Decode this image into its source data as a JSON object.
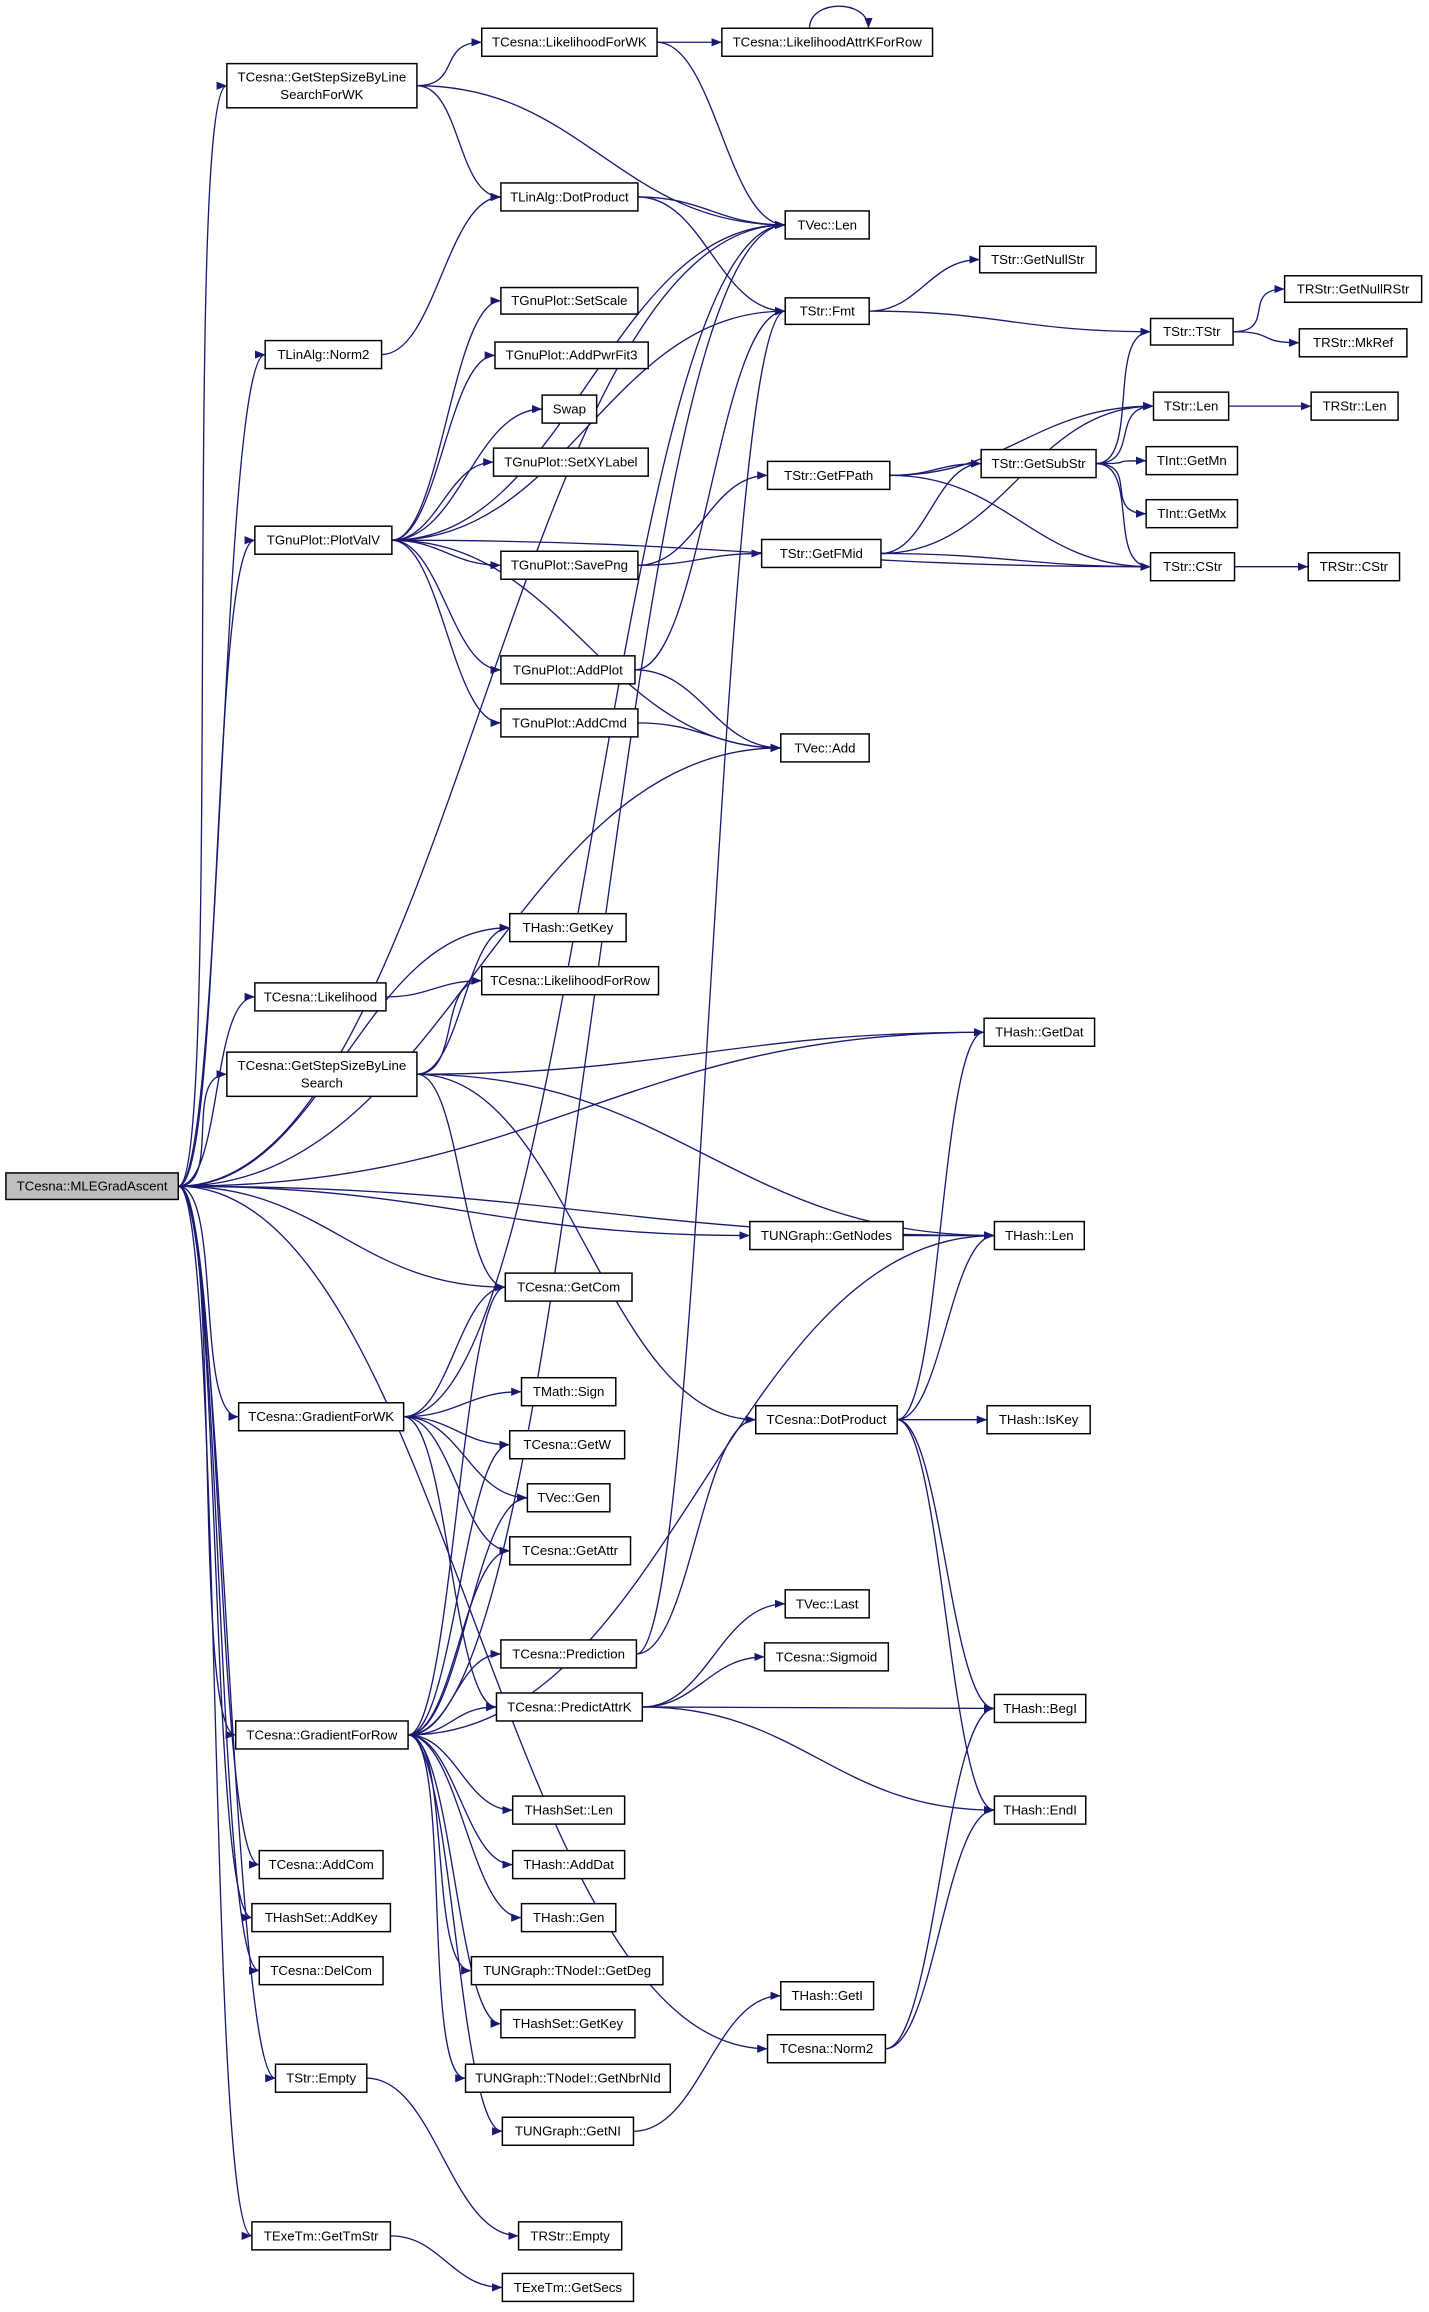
{
  "colors": {
    "edge": "#191970",
    "root_fill": "#bfbfbf",
    "node_fill": "#ffffff"
  },
  "root": "mle",
  "nodes": {
    "mle": {
      "lines": [
        "TCesna::MLEGradAscent"
      ]
    },
    "gsslfwk": {
      "lines": [
        "TCesna::GetStepSizeByLine",
        "SearchForWK"
      ]
    },
    "lfwk": {
      "lines": [
        "TCesna::LikelihoodForWK"
      ]
    },
    "lakfr": {
      "lines": [
        "TCesna::LikelihoodAttrKForRow"
      ]
    },
    "la_dot": {
      "lines": [
        "TLinAlg::DotProduct"
      ]
    },
    "vlen": {
      "lines": [
        "TVec::Len"
      ]
    },
    "getnullstr": {
      "lines": [
        "TStr::GetNullStr"
      ]
    },
    "fmt": {
      "lines": [
        "TStr::Fmt"
      ]
    },
    "getnullrstr": {
      "lines": [
        "TRStr::GetNullRStr"
      ]
    },
    "tstr": {
      "lines": [
        "TStr::TStr"
      ]
    },
    "mkref": {
      "lines": [
        "TRStr::MkRef"
      ]
    },
    "la_norm2": {
      "lines": [
        "TLinAlg::Norm2"
      ]
    },
    "setscale": {
      "lines": [
        "TGnuPlot::SetScale"
      ]
    },
    "addpwrfit3": {
      "lines": [
        "TGnuPlot::AddPwrFit3"
      ]
    },
    "swap": {
      "lines": [
        "Swap"
      ]
    },
    "setxylabel": {
      "lines": [
        "TGnuPlot::SetXYLabel"
      ]
    },
    "slen": {
      "lines": [
        "TStr::Len"
      ]
    },
    "rlen": {
      "lines": [
        "TRStr::Len"
      ]
    },
    "getfpath": {
      "lines": [
        "TStr::GetFPath"
      ]
    },
    "getsubstr": {
      "lines": [
        "TStr::GetSubStr"
      ]
    },
    "getmn": {
      "lines": [
        "TInt::GetMn"
      ]
    },
    "getmx": {
      "lines": [
        "TInt::GetMx"
      ]
    },
    "plotvalv": {
      "lines": [
        "TGnuPlot::PlotValV"
      ]
    },
    "savepng": {
      "lines": [
        "TGnuPlot::SavePng"
      ]
    },
    "getfmid": {
      "lines": [
        "TStr::GetFMid"
      ]
    },
    "cstr": {
      "lines": [
        "TStr::CStr"
      ]
    },
    "rcstr": {
      "lines": [
        "TRStr::CStr"
      ]
    },
    "addplot": {
      "lines": [
        "TGnuPlot::AddPlot"
      ]
    },
    "addcmd": {
      "lines": [
        "TGnuPlot::AddCmd"
      ]
    },
    "vadd": {
      "lines": [
        "TVec::Add"
      ]
    },
    "getkey": {
      "lines": [
        "THash::GetKey"
      ]
    },
    "likelihood": {
      "lines": [
        "TCesna::Likelihood"
      ]
    },
    "lfr": {
      "lines": [
        "TCesna::LikelihoodForRow"
      ]
    },
    "getdat": {
      "lines": [
        "THash::GetDat"
      ]
    },
    "gssls": {
      "lines": [
        "TCesna::GetStepSizeByLine",
        "Search"
      ]
    },
    "getnodes": {
      "lines": [
        "TUNGraph::GetNodes"
      ]
    },
    "hlen": {
      "lines": [
        "THash::Len"
      ]
    },
    "getcom": {
      "lines": [
        "TCesna::GetCom"
      ]
    },
    "sign": {
      "lines": [
        "TMath::Sign"
      ]
    },
    "gradwk": {
      "lines": [
        "TCesna::GradientForWK"
      ]
    },
    "c_dot": {
      "lines": [
        "TCesna::DotProduct"
      ]
    },
    "iskey": {
      "lines": [
        "THash::IsKey"
      ]
    },
    "getw": {
      "lines": [
        "TCesna::GetW"
      ]
    },
    "vgen": {
      "lines": [
        "TVec::Gen"
      ]
    },
    "getattr": {
      "lines": [
        "TCesna::GetAttr"
      ]
    },
    "vlast": {
      "lines": [
        "TVec::Last"
      ]
    },
    "prediction": {
      "lines": [
        "TCesna::Prediction"
      ]
    },
    "sigmoid": {
      "lines": [
        "TCesna::Sigmoid"
      ]
    },
    "predattrk": {
      "lines": [
        "TCesna::PredictAttrK"
      ]
    },
    "begi": {
      "lines": [
        "THash::BegI"
      ]
    },
    "gradrow": {
      "lines": [
        "TCesna::GradientForRow"
      ]
    },
    "endi": {
      "lines": [
        "THash::EndI"
      ]
    },
    "hslen": {
      "lines": [
        "THashSet::Len"
      ]
    },
    "addcom": {
      "lines": [
        "TCesna::AddCom"
      ]
    },
    "adddat": {
      "lines": [
        "THash::AddDat"
      ]
    },
    "hsaddkey": {
      "lines": [
        "THashSet::AddKey"
      ]
    },
    "hgen": {
      "lines": [
        "THash::Gen"
      ]
    },
    "delcom": {
      "lines": [
        "TCesna::DelCom"
      ]
    },
    "getdeg": {
      "lines": [
        "TUNGraph::TNodeI::GetDeg"
      ]
    },
    "hsgetkey": {
      "lines": [
        "THashSet::GetKey"
      ]
    },
    "geti": {
      "lines": [
        "THash::GetI"
      ]
    },
    "c_norm2": {
      "lines": [
        "TCesna::Norm2"
      ]
    },
    "sempty": {
      "lines": [
        "TStr::Empty"
      ]
    },
    "getnbrnid": {
      "lines": [
        "TUNGraph::TNodeI::GetNbrNId"
      ]
    },
    "getni": {
      "lines": [
        "TUNGraph::GetNI"
      ]
    },
    "rempty": {
      "lines": [
        "TRStr::Empty"
      ]
    },
    "gettmstr": {
      "lines": [
        "TExeTm::GetTmStr"
      ]
    },
    "getsecs": {
      "lines": [
        "TExeTm::GetSecs"
      ]
    }
  },
  "edges": [
    [
      "mle",
      "gsslfwk"
    ],
    [
      "mle",
      "vlen"
    ],
    [
      "mle",
      "la_norm2"
    ],
    [
      "mle",
      "plotvalv"
    ],
    [
      "mle",
      "vadd"
    ],
    [
      "mle",
      "getdat"
    ],
    [
      "mle",
      "getkey"
    ],
    [
      "mle",
      "likelihood"
    ],
    [
      "mle",
      "gssls"
    ],
    [
      "mle",
      "hlen"
    ],
    [
      "mle",
      "getnodes"
    ],
    [
      "mle",
      "getcom"
    ],
    [
      "mle",
      "gradwk"
    ],
    [
      "mle",
      "gradrow"
    ],
    [
      "mle",
      "addcom"
    ],
    [
      "mle",
      "hsaddkey"
    ],
    [
      "mle",
      "delcom"
    ],
    [
      "mle",
      "sempty"
    ],
    [
      "mle",
      "gettmstr"
    ],
    [
      "mle",
      "c_norm2"
    ],
    [
      "gsslfwk",
      "lfwk"
    ],
    [
      "gsslfwk",
      "vlen"
    ],
    [
      "gsslfwk",
      "la_dot"
    ],
    [
      "lfwk",
      "lakfr"
    ],
    [
      "lfwk",
      "vlen"
    ],
    [
      "lakfr",
      "lakfr"
    ],
    [
      "la_dot",
      "vlen"
    ],
    [
      "la_dot",
      "fmt"
    ],
    [
      "la_norm2",
      "la_dot"
    ],
    [
      "fmt",
      "getnullstr"
    ],
    [
      "fmt",
      "tstr"
    ],
    [
      "tstr",
      "getnullrstr"
    ],
    [
      "tstr",
      "mkref"
    ],
    [
      "plotvalv",
      "vlen"
    ],
    [
      "plotvalv",
      "setscale"
    ],
    [
      "plotvalv",
      "addpwrfit3"
    ],
    [
      "plotvalv",
      "swap"
    ],
    [
      "plotvalv",
      "setxylabel"
    ],
    [
      "plotvalv",
      "savepng"
    ],
    [
      "plotvalv",
      "addplot"
    ],
    [
      "plotvalv",
      "addcmd"
    ],
    [
      "plotvalv",
      "fmt"
    ],
    [
      "plotvalv",
      "cstr"
    ],
    [
      "plotvalv",
      "vadd"
    ],
    [
      "savepng",
      "getfpath"
    ],
    [
      "savepng",
      "getfmid"
    ],
    [
      "getfpath",
      "slen"
    ],
    [
      "getfpath",
      "getsubstr"
    ],
    [
      "getfpath",
      "cstr"
    ],
    [
      "getfmid",
      "getsubstr"
    ],
    [
      "getfmid",
      "slen"
    ],
    [
      "getfmid",
      "cstr"
    ],
    [
      "getsubstr",
      "tstr"
    ],
    [
      "getsubstr",
      "slen"
    ],
    [
      "getsubstr",
      "getmn"
    ],
    [
      "getsubstr",
      "getmx"
    ],
    [
      "getsubstr",
      "cstr"
    ],
    [
      "slen",
      "rlen"
    ],
    [
      "cstr",
      "rcstr"
    ],
    [
      "addplot",
      "fmt"
    ],
    [
      "addplot",
      "vadd"
    ],
    [
      "addcmd",
      "vadd"
    ],
    [
      "likelihood",
      "lfr"
    ],
    [
      "gssls",
      "getkey"
    ],
    [
      "gssls",
      "lfr"
    ],
    [
      "gssls",
      "getdat"
    ],
    [
      "gssls",
      "hlen"
    ],
    [
      "gssls",
      "getcom"
    ],
    [
      "gssls",
      "c_dot"
    ],
    [
      "getnodes",
      "hlen"
    ],
    [
      "gradwk",
      "getcom"
    ],
    [
      "gradwk",
      "vlen"
    ],
    [
      "gradwk",
      "sign"
    ],
    [
      "gradwk",
      "getw"
    ],
    [
      "gradwk",
      "vgen"
    ],
    [
      "gradwk",
      "getattr"
    ],
    [
      "gradwk",
      "predattrk"
    ],
    [
      "c_dot",
      "getdat"
    ],
    [
      "c_dot",
      "hlen"
    ],
    [
      "c_dot",
      "iskey"
    ],
    [
      "c_dot",
      "begi"
    ],
    [
      "c_dot",
      "endi"
    ],
    [
      "prediction",
      "c_dot"
    ],
    [
      "prediction",
      "fmt"
    ],
    [
      "predattrk",
      "vlast"
    ],
    [
      "predattrk",
      "sigmoid"
    ],
    [
      "predattrk",
      "begi"
    ],
    [
      "predattrk",
      "endi"
    ],
    [
      "gradrow",
      "getcom"
    ],
    [
      "gradrow",
      "getw"
    ],
    [
      "gradrow",
      "vgen"
    ],
    [
      "gradrow",
      "getattr"
    ],
    [
      "gradrow",
      "prediction"
    ],
    [
      "gradrow",
      "predattrk"
    ],
    [
      "gradrow",
      "hlen"
    ],
    [
      "gradrow",
      "hslen"
    ],
    [
      "gradrow",
      "adddat"
    ],
    [
      "gradrow",
      "hgen"
    ],
    [
      "gradrow",
      "getdeg"
    ],
    [
      "gradrow",
      "hsgetkey"
    ],
    [
      "gradrow",
      "getnbrnid"
    ],
    [
      "gradrow",
      "getni"
    ],
    [
      "gradrow",
      "vlen"
    ],
    [
      "getni",
      "geti"
    ],
    [
      "c_norm2",
      "begi"
    ],
    [
      "c_norm2",
      "endi"
    ],
    [
      "sempty",
      "rempty"
    ],
    [
      "gettmstr",
      "getsecs"
    ]
  ]
}
